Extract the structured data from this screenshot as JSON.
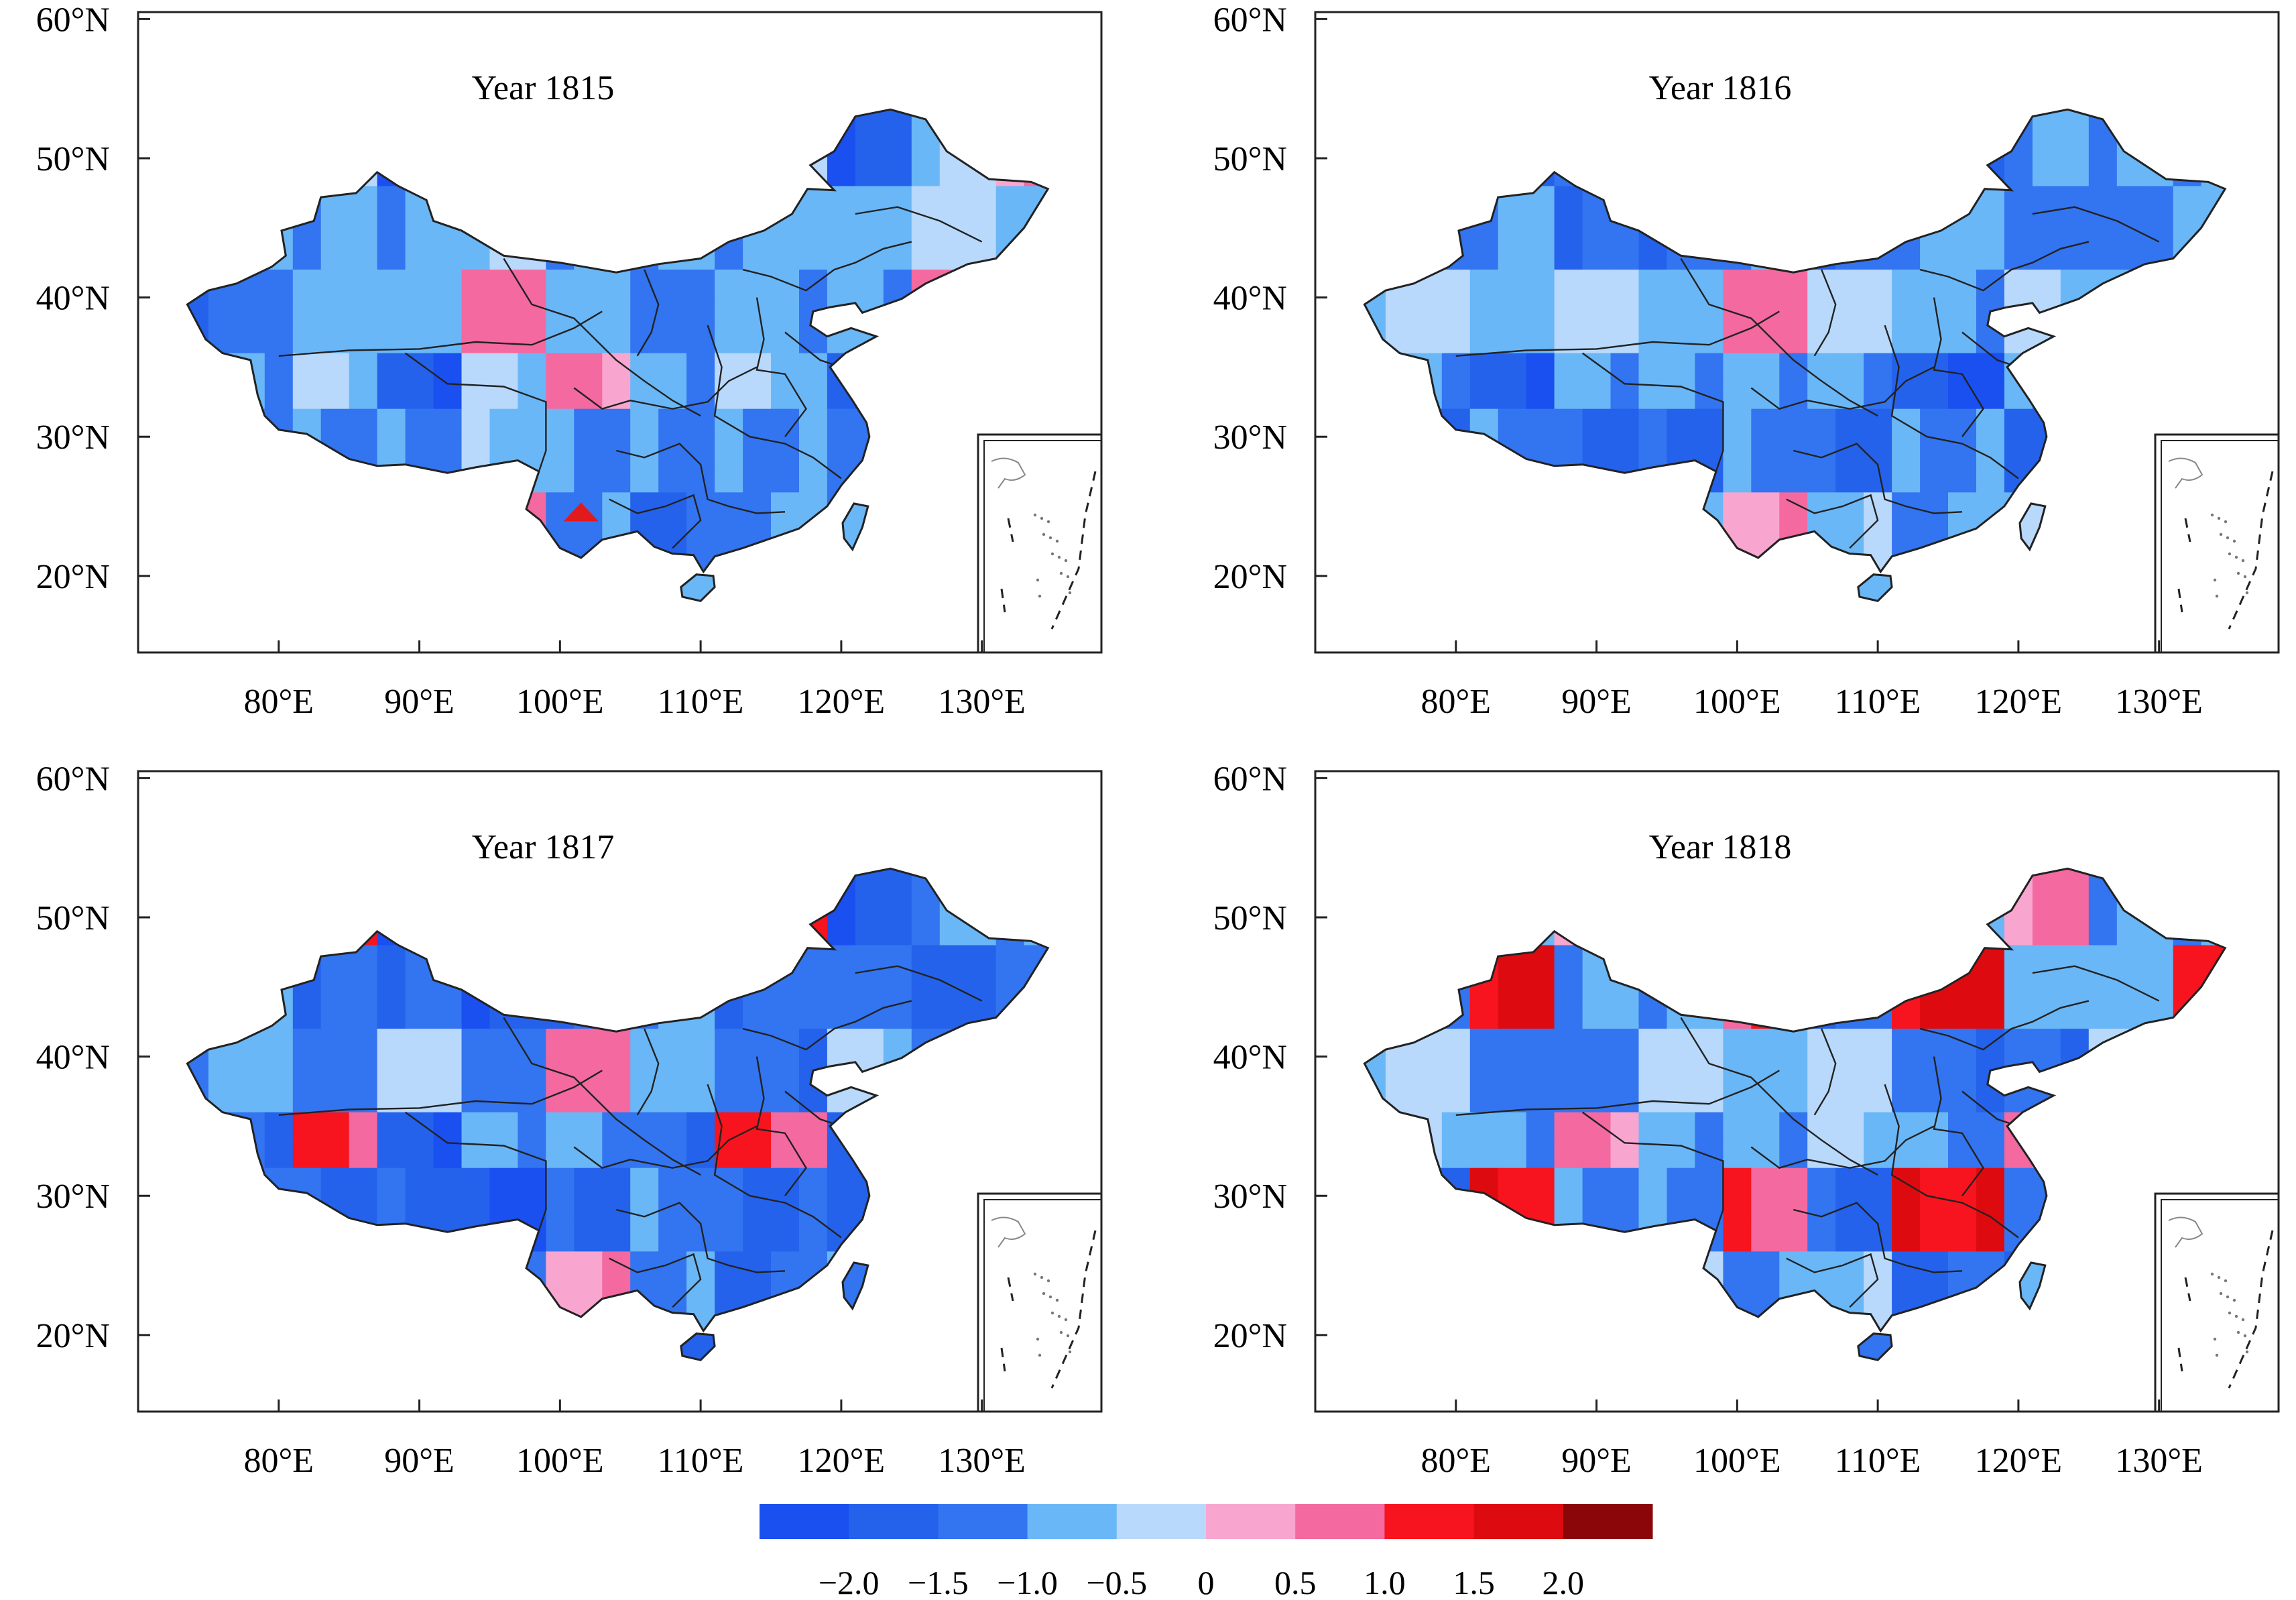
{
  "panels": [
    {
      "title": "Year 1815",
      "pattern": [
        -1,
        -1,
        -1,
        -0.5,
        0.5,
        -1,
        -2,
        -1,
        -1,
        -0.5,
        -1.5,
        -1,
        0.5,
        -1,
        -0.5
      ],
      "has_marker": true
    },
    {
      "title": "Year 1816",
      "pattern": [
        -1.5,
        -1,
        -0.5,
        -1,
        -2,
        -1,
        -1.5,
        -1,
        0.5,
        -1,
        -1,
        -0.5,
        -1.5,
        -1,
        -1
      ],
      "has_marker": false
    },
    {
      "title": "Year 1817",
      "pattern": [
        -1.5,
        -2,
        -1.5,
        -0.5,
        -1.5,
        1,
        -1.5,
        -1,
        -2,
        0.5,
        -1.5,
        -1,
        -1,
        -1.5,
        -1
      ],
      "has_marker": false
    },
    {
      "title": "Year 1818",
      "pattern": [
        -1,
        -1.5,
        -1,
        -0.5,
        -1.5,
        1,
        -1,
        -0.5,
        -1.5,
        0.5,
        -1,
        1.5,
        -1,
        -0.5,
        -1
      ],
      "has_marker": false
    }
  ],
  "lat_labels": [
    "60°N",
    "50°N",
    "40°N",
    "30°N",
    "20°N"
  ],
  "lon_labels": [
    "80°E",
    "90°E",
    "100°E",
    "110°E",
    "120°E",
    "130°E"
  ],
  "colorbar": {
    "labels": [
      "−2.0",
      "−1.5",
      "−1.0",
      "−0.5",
      "0",
      "0.5",
      "1.0",
      "1.5",
      "2.0"
    ],
    "colors": [
      "#1a4ff0",
      "#2462ec",
      "#3374f0",
      "#6ab7f7",
      "#b8d9fb",
      "#f8a6cf",
      "#f4699f",
      "#f7141e",
      "#dd0b10",
      "#8a0609"
    ]
  },
  "marker_color": "#e31a1c",
  "outline_color": "#222222"
}
